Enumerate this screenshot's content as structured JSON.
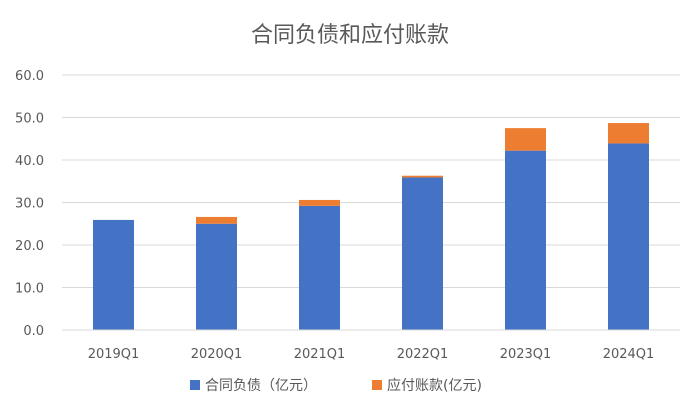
{
  "chart_data": {
    "type": "bar",
    "stacked": true,
    "title": "合同负债和应付账款",
    "categories": [
      "2019Q1",
      "2020Q1",
      "2021Q1",
      "2022Q1",
      "2023Q1",
      "2024Q1"
    ],
    "series": [
      {
        "name": "合同负债（亿元）",
        "color": "#4472C4",
        "values": [
          25.9,
          25.0,
          29.2,
          35.9,
          42.2,
          43.9
        ]
      },
      {
        "name": "应付账款(亿元)",
        "color": "#ED7D31",
        "values": [
          0.0,
          1.6,
          1.4,
          0.4,
          5.3,
          4.8
        ]
      }
    ],
    "y_ticks": [
      "0.0",
      "10.0",
      "20.0",
      "30.0",
      "40.0",
      "50.0",
      "60.0"
    ],
    "ylim": [
      0,
      60
    ],
    "grid": true,
    "legend_position": "bottom",
    "gridline_color": "#D9D9D9"
  }
}
